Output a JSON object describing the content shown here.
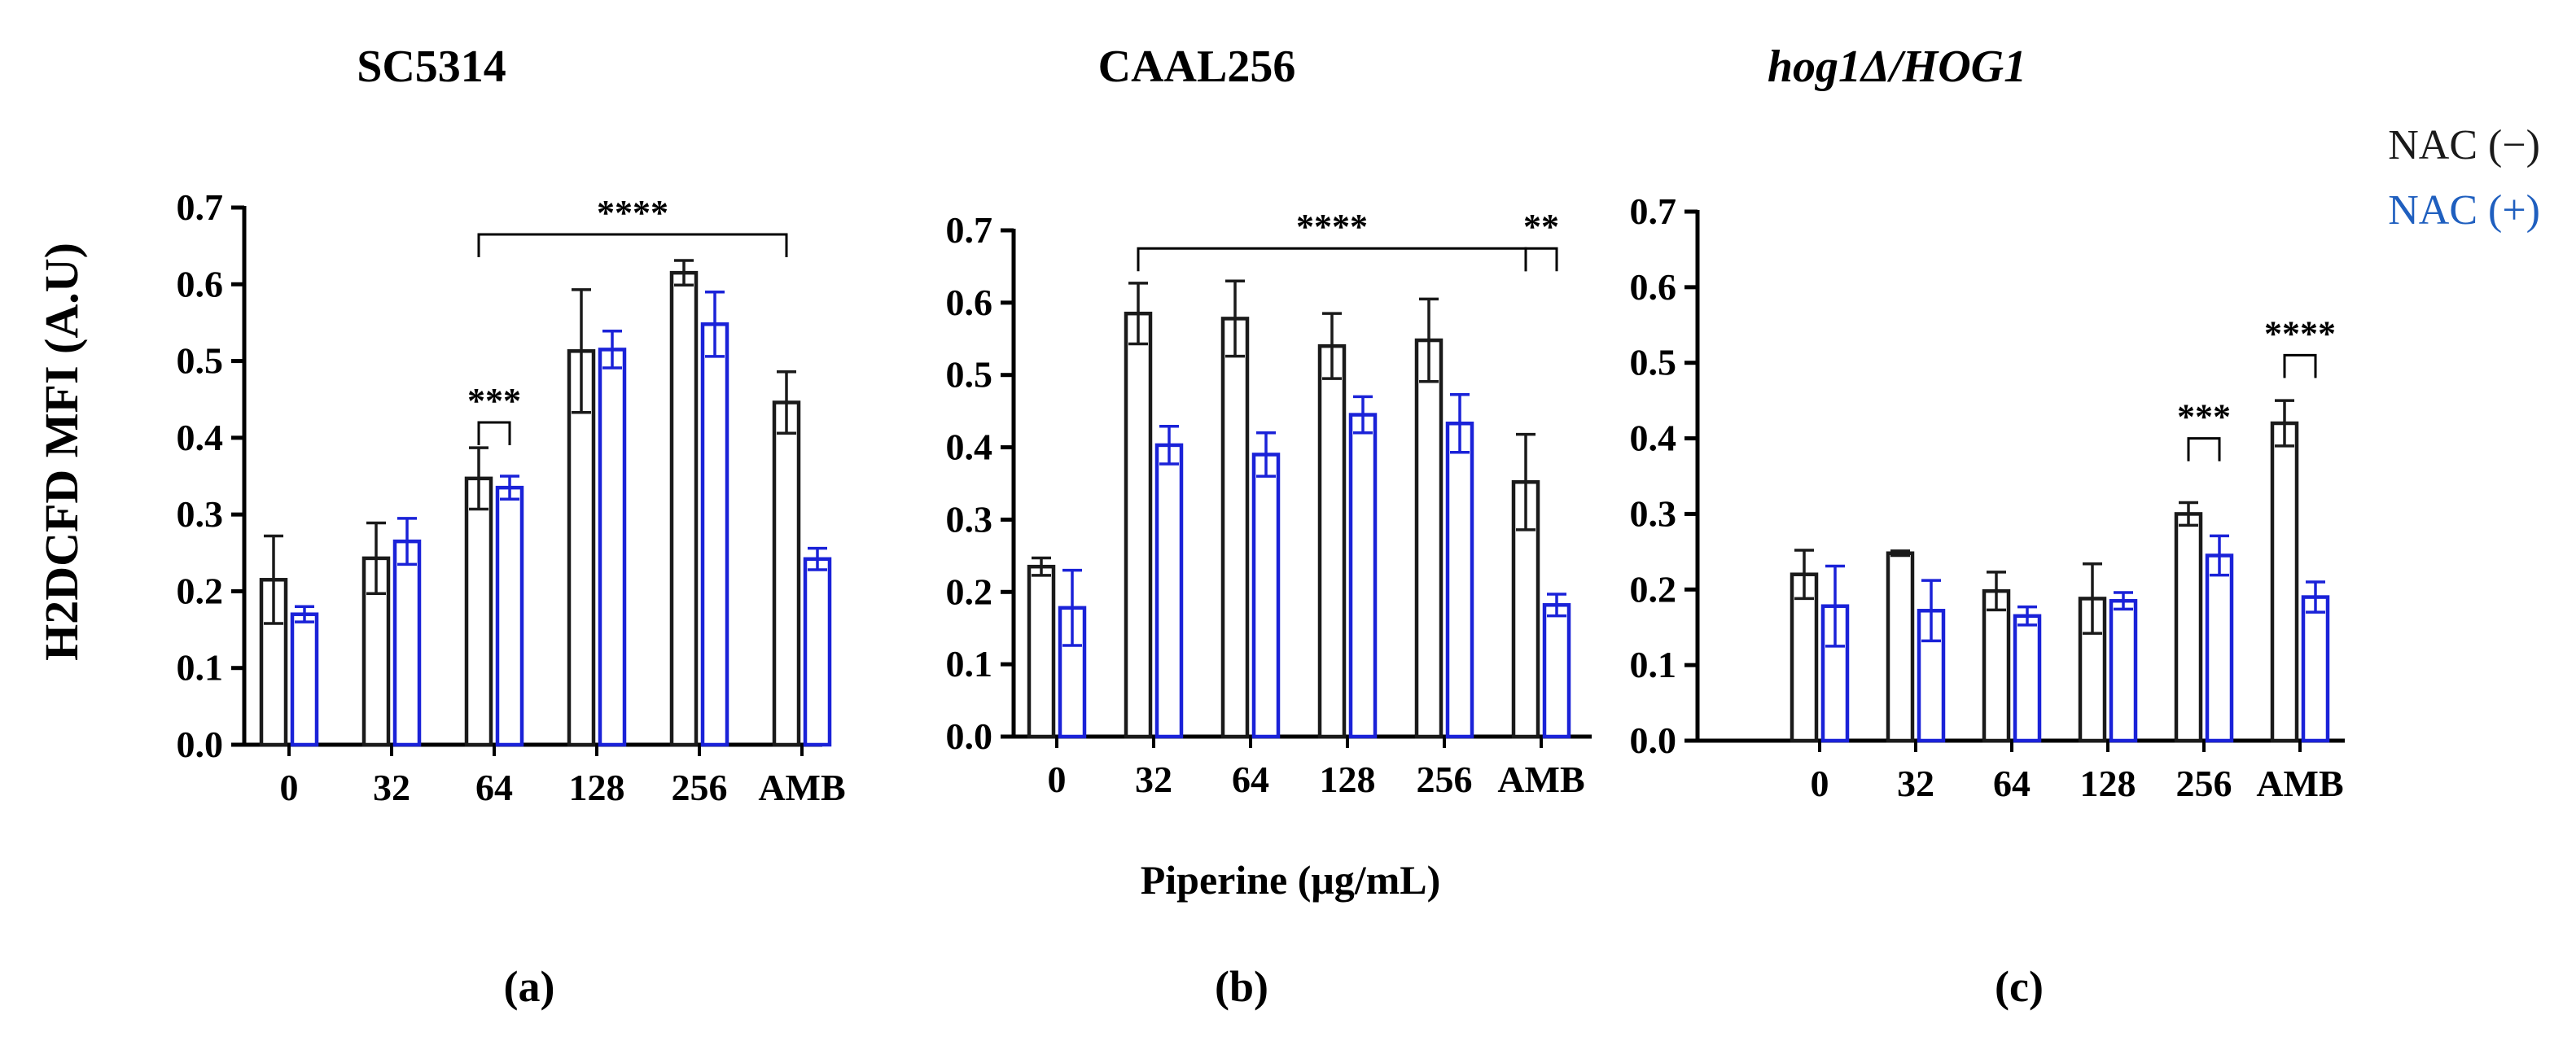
{
  "figure": {
    "shared_ylabel": "H2DCFD MFI (A.U)",
    "shared_xlabel": "Piperine (μg/mL)",
    "legend": [
      {
        "label": "NAC (−)",
        "color": "#1a1a1a"
      },
      {
        "label": "NAC (+)",
        "color": "#1f5fbf"
      }
    ],
    "colors": {
      "nac_minus": "#1a1a1a",
      "nac_plus": "#1a22d8"
    }
  },
  "chart_data": [
    {
      "type": "bar",
      "panel_label": "(a)",
      "title": "SC5314",
      "title_italic": false,
      "categories": [
        "0",
        "32",
        "64",
        "128",
        "256",
        "AMB"
      ],
      "ylim": [
        0,
        0.7
      ],
      "yticks": [
        "0.0",
        "0.1",
        "0.2",
        "0.3",
        "0.4",
        "0.5",
        "0.6",
        "0.7"
      ],
      "series": [
        {
          "name": "NAC (−)",
          "values": [
            0.215,
            0.243,
            0.347,
            0.513,
            0.615,
            0.446
          ],
          "errors": [
            0.057,
            0.046,
            0.04,
            0.08,
            0.016,
            0.04
          ]
        },
        {
          "name": "NAC (+)",
          "values": [
            0.17,
            0.265,
            0.335,
            0.515,
            0.548,
            0.242
          ],
          "errors": [
            0.01,
            0.03,
            0.015,
            0.024,
            0.042,
            0.014
          ]
        }
      ],
      "significance": [
        {
          "label": "***",
          "from": 2,
          "to": 2,
          "height": 0.42
        },
        {
          "label": "****",
          "from": 2,
          "to": 5,
          "height": 0.665
        }
      ]
    },
    {
      "type": "bar",
      "panel_label": "(b)",
      "title": "CAAL256",
      "title_italic": false,
      "categories": [
        "0",
        "32",
        "64",
        "128",
        "256",
        "AMB"
      ],
      "ylim": [
        0,
        0.7
      ],
      "yticks": [
        "0.0",
        "0.1",
        "0.2",
        "0.3",
        "0.4",
        "0.5",
        "0.6",
        "0.7"
      ],
      "series": [
        {
          "name": "NAC (−)",
          "values": [
            0.235,
            0.585,
            0.578,
            0.54,
            0.548,
            0.352
          ],
          "errors": [
            0.012,
            0.042,
            0.052,
            0.045,
            0.057,
            0.066
          ]
        },
        {
          "name": "NAC (+)",
          "values": [
            0.178,
            0.403,
            0.39,
            0.445,
            0.433,
            0.182
          ],
          "errors": [
            0.052,
            0.026,
            0.03,
            0.025,
            0.04,
            0.015
          ]
        }
      ],
      "significance": [
        {
          "label": "****",
          "from": 1,
          "to": 5,
          "height": 0.675
        },
        {
          "label": "**",
          "from": 5,
          "to": 5,
          "height": 0.675
        }
      ]
    },
    {
      "type": "bar",
      "panel_label": "(c)",
      "title": "hog1Δ/HOG1",
      "title_italic": true,
      "categories": [
        "0",
        "32",
        "64",
        "128",
        "256",
        "AMB"
      ],
      "ylim": [
        0,
        0.7
      ],
      "yticks": [
        "0.0",
        "0.1",
        "0.2",
        "0.3",
        "0.4",
        "0.5",
        "0.6",
        "0.7"
      ],
      "series": [
        {
          "name": "NAC (−)",
          "values": [
            0.22,
            0.248,
            0.198,
            0.188,
            0.3,
            0.42
          ],
          "errors": [
            0.032,
            0.003,
            0.025,
            0.046,
            0.015,
            0.03
          ]
        },
        {
          "name": "NAC (+)",
          "values": [
            0.178,
            0.172,
            0.165,
            0.185,
            0.245,
            0.19
          ],
          "errors": [
            0.053,
            0.04,
            0.012,
            0.011,
            0.026,
            0.02
          ]
        }
      ],
      "significance": [
        {
          "label": "***",
          "from": 4,
          "to": 4,
          "height": 0.4
        },
        {
          "label": "****",
          "from": 5,
          "to": 5,
          "height": 0.51
        }
      ]
    }
  ]
}
